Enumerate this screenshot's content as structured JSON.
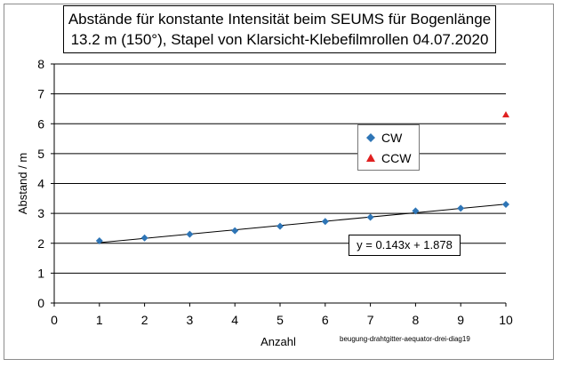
{
  "chart_data": {
    "type": "scatter",
    "title_lines": [
      "Abstände für konstante Intensität beim SEUMS für Bogenlänge",
      "13.2 m (150°), Stapel von Klarsicht-Klebefilmrollen 04.07.2020"
    ],
    "xlabel": "Anzahl",
    "ylabel": "Abstand / m",
    "xlim": [
      0,
      10
    ],
    "ylim": [
      0,
      8
    ],
    "x_ticks": [
      "0",
      "1",
      "2",
      "3",
      "4",
      "5",
      "6",
      "7",
      "8",
      "9",
      "10"
    ],
    "y_ticks": [
      "0",
      "1",
      "2",
      "3",
      "4",
      "5",
      "6",
      "7",
      "8"
    ],
    "grid": "horizontal",
    "legend_position": "right",
    "series": [
      {
        "name": "CW",
        "marker": "diamond",
        "color": "#2e75b6",
        "x": [
          1,
          2,
          3,
          4,
          5,
          6,
          7,
          8,
          9,
          10
        ],
        "y": [
          2.08,
          2.18,
          2.3,
          2.42,
          2.57,
          2.73,
          2.87,
          3.08,
          3.17,
          3.3
        ]
      },
      {
        "name": "CCW",
        "marker": "triangle",
        "color": "#e02020",
        "x": [
          10
        ],
        "y": [
          6.3
        ]
      }
    ],
    "trendline": {
      "slope": 0.143,
      "intercept": 1.878,
      "x_range": [
        1,
        10
      ],
      "equation": "y = 0.143x + 1.878"
    },
    "footnote": "beugung-drahtgitter-aequator-drei-diag19"
  }
}
